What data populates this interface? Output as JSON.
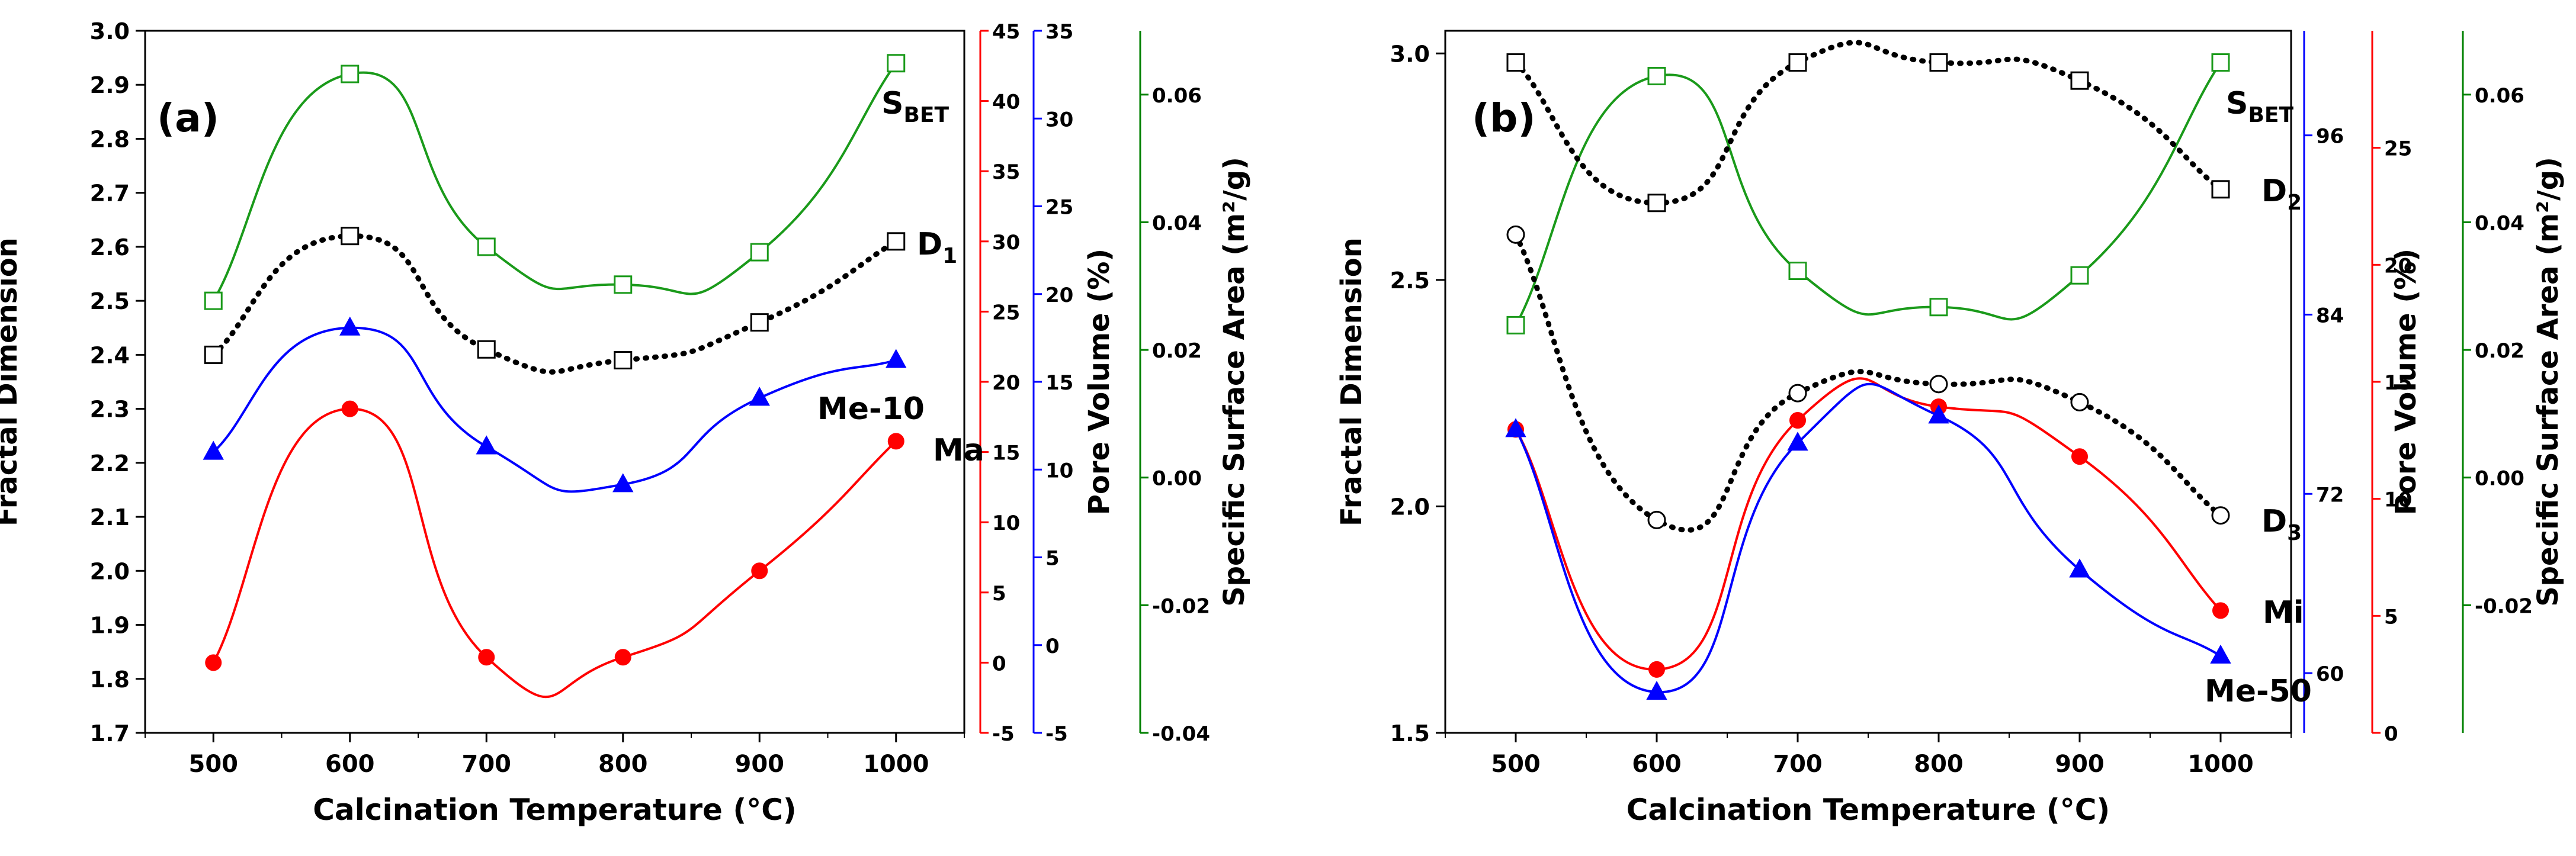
{
  "chart_data": [
    {
      "panel_label": "(a)",
      "type": "line",
      "x": [
        500,
        600,
        700,
        800,
        900,
        1000
      ],
      "xlabel": "Calcination Temperature (°C)",
      "xticks": [
        "500",
        "600",
        "700",
        "800",
        "900",
        "1000"
      ],
      "xlim": [
        450,
        1050
      ],
      "axes": [
        {
          "id": "fd",
          "label": "Fractal Dimension",
          "side": "left",
          "color": "#000000",
          "lim": [
            1.7,
            3.0
          ],
          "ticks": [
            "1.7",
            "1.8",
            "1.9",
            "2.0",
            "2.1",
            "2.2",
            "2.3",
            "2.4",
            "2.5",
            "2.6",
            "2.7",
            "2.8",
            "2.9",
            "3.0"
          ]
        },
        {
          "id": "pv_red",
          "label": "",
          "side": "right",
          "color": "#ff0000",
          "lim": [
            -5,
            45
          ],
          "ticks": [
            "-5",
            "0",
            "5",
            "10",
            "15",
            "20",
            "25",
            "30",
            "35",
            "40",
            "45"
          ]
        },
        {
          "id": "pv_blue",
          "label": "Pore Volume (%)",
          "side": "right",
          "color": "#0000ff",
          "lim": [
            -5,
            35
          ],
          "ticks": [
            "-5",
            "0",
            "5",
            "10",
            "15",
            "20",
            "25",
            "30",
            "35"
          ]
        },
        {
          "id": "ssa",
          "label": "Specific Surface Area (m²/g)",
          "side": "right",
          "color": "#008000",
          "lim": [
            -0.04,
            0.07
          ],
          "ticks": [
            "-0.04",
            "-0.02",
            "0.00",
            "0.02",
            "0.04",
            "0.06"
          ]
        }
      ],
      "series": [
        {
          "name": "S_BET",
          "label_main": "S",
          "label_sub": "BET",
          "axis": "fd",
          "color": "#1a9a1a",
          "marker": "open-square",
          "style": "solid",
          "values": [
            2.5,
            2.92,
            2.6,
            2.53,
            2.59,
            2.94
          ]
        },
        {
          "name": "D1",
          "label_main": "D",
          "label_sub": "1",
          "axis": "fd",
          "color": "#000000",
          "marker": "open-square",
          "style": "dotted",
          "values": [
            2.4,
            2.62,
            2.41,
            2.39,
            2.46,
            2.61
          ]
        },
        {
          "name": "Ma",
          "label_main": "Ma",
          "label_sub": "",
          "axis": "fd",
          "color": "#0000ff",
          "marker": "filled-triangle",
          "style": "solid",
          "values": [
            2.22,
            2.45,
            2.23,
            2.16,
            2.32,
            2.39
          ]
        },
        {
          "name": "Me-10",
          "label_main": "Me-10",
          "label_sub": "",
          "axis": "fd",
          "color": "#ff0000",
          "marker": "filled-circle",
          "style": "solid",
          "values": [
            1.83,
            2.3,
            1.84,
            1.84,
            2.0,
            2.24
          ]
        }
      ]
    },
    {
      "panel_label": "(b)",
      "type": "line",
      "x": [
        500,
        600,
        700,
        800,
        900,
        1000
      ],
      "xlabel": "Calcination Temperature (°C)",
      "xticks": [
        "500",
        "600",
        "700",
        "800",
        "900",
        "1000"
      ],
      "xlim": [
        450,
        1050
      ],
      "axes": [
        {
          "id": "fd",
          "label": "Fractal Dimension",
          "side": "left",
          "color": "#000000",
          "lim": [
            1.5,
            3.05
          ],
          "ticks": [
            "1.5",
            "2.0",
            "2.5",
            "3.0"
          ]
        },
        {
          "id": "pv_blue",
          "label": "",
          "side": "right",
          "color": "#0000ff",
          "lim": [
            56,
            103
          ],
          "ticks": [
            "60",
            "72",
            "84",
            "96"
          ]
        },
        {
          "id": "pv_red",
          "label": "Pore Volume (%)",
          "side": "right",
          "color": "#ff0000",
          "lim": [
            0,
            30
          ],
          "ticks": [
            "0",
            "5",
            "10",
            "15",
            "20",
            "25"
          ]
        },
        {
          "id": "ssa",
          "label": "Specific Surface Area (m²/g)",
          "side": "right",
          "color": "#008000",
          "lim": [
            -0.04,
            0.07
          ],
          "ticks": [
            "-0.02",
            "0.00",
            "0.02",
            "0.04",
            "0.06"
          ]
        }
      ],
      "series": [
        {
          "name": "S_BET",
          "label_main": "S",
          "label_sub": "BET",
          "axis": "fd",
          "color": "#1a9a1a",
          "marker": "open-square",
          "style": "solid",
          "values": [
            2.4,
            2.95,
            2.52,
            2.44,
            2.51,
            2.98
          ]
        },
        {
          "name": "D2",
          "label_main": "D",
          "label_sub": "2",
          "axis": "fd",
          "color": "#000000",
          "marker": "open-square",
          "style": "dotted",
          "values": [
            2.98,
            2.67,
            2.98,
            2.98,
            2.94,
            2.7
          ]
        },
        {
          "name": "D3",
          "label_main": "D",
          "label_sub": "3",
          "axis": "fd",
          "color": "#000000",
          "marker": "open-circle",
          "style": "dotted",
          "values": [
            2.6,
            1.97,
            2.25,
            2.27,
            2.23,
            1.98
          ]
        },
        {
          "name": "Mi",
          "label_main": "Mi",
          "label_sub": "",
          "axis": "fd",
          "color": "#ff0000",
          "marker": "filled-circle",
          "style": "solid",
          "values": [
            2.17,
            1.64,
            2.19,
            2.22,
            2.11,
            1.77
          ]
        },
        {
          "name": "Me-50",
          "label_main": "Me-50",
          "label_sub": "",
          "axis": "fd",
          "color": "#0000ff",
          "marker": "filled-triangle",
          "style": "solid",
          "values": [
            2.17,
            1.59,
            2.14,
            2.2,
            1.86,
            1.67
          ]
        }
      ]
    }
  ]
}
